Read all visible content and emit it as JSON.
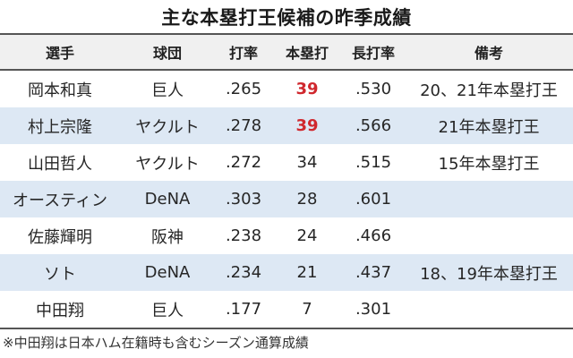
{
  "title": "主な本塁打王候補の昨季成績",
  "table": {
    "columns": [
      "選手",
      "球団",
      "打率",
      "本塁打",
      "長打率",
      "備考"
    ],
    "rows": [
      {
        "player": "岡本和真",
        "team": "巨人",
        "avg": ".265",
        "hr": "39",
        "slg": ".530",
        "note": "20、21年本塁打王",
        "hr_highlight": true
      },
      {
        "player": "村上宗隆",
        "team": "ヤクルト",
        "avg": ".278",
        "hr": "39",
        "slg": ".566",
        "note": "21年本塁打王",
        "hr_highlight": true
      },
      {
        "player": "山田哲人",
        "team": "ヤクルト",
        "avg": ".272",
        "hr": "34",
        "slg": ".515",
        "note": "15年本塁打王",
        "hr_highlight": false
      },
      {
        "player": "オースティン",
        "team": "DeNA",
        "avg": ".303",
        "hr": "28",
        "slg": ".601",
        "note": "",
        "hr_highlight": false
      },
      {
        "player": "佐藤輝明",
        "team": "阪神",
        "avg": ".238",
        "hr": "24",
        "slg": ".466",
        "note": "",
        "hr_highlight": false
      },
      {
        "player": "ソト",
        "team": "DeNA",
        "avg": ".234",
        "hr": "21",
        "slg": ".437",
        "note": "18、19年本塁打王",
        "hr_highlight": false
      },
      {
        "player": "中田翔",
        "team": "巨人",
        "avg": ".177",
        "hr": "7",
        "slg": ".301",
        "note": "",
        "hr_highlight": false
      }
    ]
  },
  "footnote": "※中田翔は日本ハム在籍時も含むシーズン通算成績",
  "colors": {
    "header_bg": "#f0f0f0",
    "alt_row_bg": "#dde8f4",
    "highlight_red": "#d0282e",
    "rule": "#555555"
  }
}
